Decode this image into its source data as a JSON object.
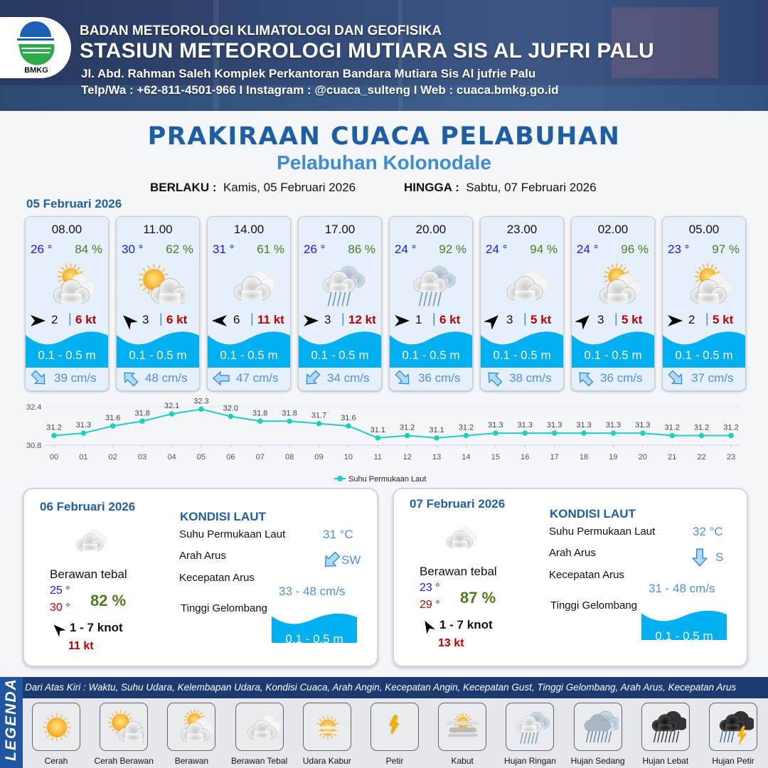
{
  "header": {
    "org": "BADAN METEOROLOGI KLIMATOLOGI DAN GEOFISIKA",
    "station": "STASIUN METEOROLOGI MUTIARA SIS AL JUFRI PALU",
    "address": "Jl. Abd. Rahman Saleh Komplek Perkantoran Bandara Mutiara Sis Al jufrie Palu",
    "contact": "Telp/Wa : +62-811-4501-966  I  Instagram : @cuaca_sulteng  I  Web : cuaca.bmkg.go.id",
    "logo_text": "BMKG"
  },
  "title": "PRAKIRAAN CUACA PELABUHAN",
  "subtitle": "Pelabuhan Kolonodale",
  "validity": {
    "from_label": "BERLAKU :",
    "from": "Kamis, 05 Februari 2026",
    "to_label": "HINGGA :",
    "to": "Sabtu, 07 Februari 2026"
  },
  "day1_date": "05 Februari 2026",
  "forecasts": [
    {
      "time": "08.00",
      "temp": "26 °",
      "rh": "84 %",
      "weather": "berawan",
      "wind_dir_deg": 90,
      "wind_speed": "2",
      "gust": "6 kt",
      "wave": "0.1 - 0.5 m",
      "current_dir_deg": 135,
      "current_speed": "39 cm/s"
    },
    {
      "time": "11.00",
      "temp": "30 °",
      "rh": "62 %",
      "weather": "cerah-berawan",
      "wind_dir_deg": 315,
      "wind_speed": "3",
      "gust": "6 kt",
      "wave": "0.1 - 0.5 m",
      "current_dir_deg": 315,
      "current_speed": "48 cm/s"
    },
    {
      "time": "14.00",
      "temp": "31 °",
      "rh": "61 %",
      "weather": "berawan-tebal",
      "wind_dir_deg": 270,
      "wind_speed": "6",
      "gust": "11 kt",
      "wave": "0.1 - 0.5 m",
      "current_dir_deg": 270,
      "current_speed": "47 cm/s"
    },
    {
      "time": "17.00",
      "temp": "26 °",
      "rh": "86 %",
      "weather": "hujan-ringan",
      "wind_dir_deg": 90,
      "wind_speed": "3",
      "gust": "12 kt",
      "wave": "0.1 - 0.5 m",
      "current_dir_deg": 225,
      "current_speed": "34 cm/s"
    },
    {
      "time": "20.00",
      "temp": "24 °",
      "rh": "92 %",
      "weather": "hujan-ringan",
      "wind_dir_deg": 90,
      "wind_speed": "1",
      "gust": "6 kt",
      "wave": "0.1 - 0.5 m",
      "current_dir_deg": 135,
      "current_speed": "36 cm/s"
    },
    {
      "time": "23.00",
      "temp": "24 °",
      "rh": "94 %",
      "weather": "berawan-tebal",
      "wind_dir_deg": 45,
      "wind_speed": "3",
      "gust": "5 kt",
      "wave": "0.1 - 0.5 m",
      "current_dir_deg": 315,
      "current_speed": "38 cm/s"
    },
    {
      "time": "02.00",
      "temp": "24 °",
      "rh": "96 %",
      "weather": "berawan",
      "wind_dir_deg": 45,
      "wind_speed": "3",
      "gust": "5 kt",
      "wave": "0.1 - 0.5 m",
      "current_dir_deg": 315,
      "current_speed": "36 cm/s"
    },
    {
      "time": "05.00",
      "temp": "23 °",
      "rh": "97 %",
      "weather": "berawan",
      "wind_dir_deg": 90,
      "wind_speed": "2",
      "gust": "5 kt",
      "wave": "0.1 - 0.5 m",
      "current_dir_deg": 135,
      "current_speed": "37 cm/s"
    }
  ],
  "chart_data": {
    "type": "line",
    "categories": [
      "00",
      "01",
      "02",
      "03",
      "04",
      "05",
      "06",
      "07",
      "08",
      "09",
      "10",
      "11",
      "12",
      "13",
      "14",
      "15",
      "16",
      "17",
      "18",
      "19",
      "20",
      "21",
      "22",
      "23"
    ],
    "series": [
      {
        "name": "Suhu Permukaan Laut",
        "values": [
          31.2,
          31.3,
          31.6,
          31.8,
          32.1,
          32.3,
          32.0,
          31.8,
          31.8,
          31.7,
          31.6,
          31.1,
          31.2,
          31.1,
          31.2,
          31.3,
          31.3,
          31.3,
          31.3,
          31.3,
          31.3,
          31.2,
          31.2,
          31.2
        ]
      }
    ],
    "ylim": [
      30.8,
      32.4
    ],
    "yticks": [
      "30.8",
      "32.4"
    ],
    "legend": "bottom",
    "color": "#1ecfbf"
  },
  "daily": [
    {
      "date": "06 Februari 2026",
      "weather": "berawan-tebal",
      "condition": "Berawan tebal",
      "tmin": "25 °",
      "tmax": "30 °",
      "rh": "82 %",
      "wind_dir_deg": 315,
      "wind": "1 - 7 knot",
      "gust": "11 kt",
      "sea_title": "KONDISI LAUT",
      "sst_label": "Suhu Permukaan Laut",
      "sst": "31 °C",
      "cur_dir_label": "Arah Arus",
      "current_dir_deg": 225,
      "current_dir": "SW",
      "cur_speed_label": "Kecepatan Arus",
      "current_speed": "33 - 48 cm/s",
      "wave_label": "Tinggi Gelombang",
      "wave": "0.1 - 0.5 m"
    },
    {
      "date": "07 Februari 2026",
      "weather": "berawan-tebal",
      "condition": "Berawan tebal",
      "tmin": "23 °",
      "tmax": "29 °",
      "rh": "87 %",
      "wind_dir_deg": 330,
      "wind": "1 - 7 knot",
      "gust": "13 kt",
      "sea_title": "KONDISI LAUT",
      "sst_label": "Suhu Permukaan Laut",
      "sst": "32 °C",
      "cur_dir_label": "Arah Arus",
      "current_dir_deg": 180,
      "current_dir": "S",
      "cur_speed_label": "Kecepatan Arus",
      "current_speed": "31 - 48 cm/s",
      "wave_label": "Tinggi Gelombang",
      "wave": "0.1 - 0.5 m"
    }
  ],
  "legend": {
    "title": "LEGENDA",
    "description": "Dari Atas Kiri : Waktu, Suhu Udara, Kelembapan Udara, Kondisi Cuaca, Arah Angin, Kecepatan Angin, Kecepatan Gust, Tinggi Gelombang, Arah Arus, Kecepatan Arus",
    "items": [
      {
        "label": "Cerah",
        "icon": "cerah"
      },
      {
        "label": "Cerah Berawan",
        "icon": "cerah-berawan"
      },
      {
        "label": "Berawan",
        "icon": "berawan"
      },
      {
        "label": "Berawan Tebal",
        "icon": "berawan-tebal"
      },
      {
        "label": "Udara Kabur",
        "icon": "udara-kabur"
      },
      {
        "label": "Petir",
        "icon": "petir"
      },
      {
        "label": "Kabut",
        "icon": "kabut"
      },
      {
        "label": "Hujan Ringan",
        "icon": "hujan-ringan"
      },
      {
        "label": "Hujan Sedang",
        "icon": "hujan-sedang"
      },
      {
        "label": "Hujan Lebat",
        "icon": "hujan-lebat"
      },
      {
        "label": "Hujan Petir",
        "icon": "hujan-petir"
      }
    ]
  },
  "colors": {
    "title": "#1c5fa6",
    "wave": "#00b0f0",
    "temp": "#1414ff",
    "humidity": "#4c7d1c",
    "gust": "#c00000",
    "current": "#4f8fde"
  }
}
